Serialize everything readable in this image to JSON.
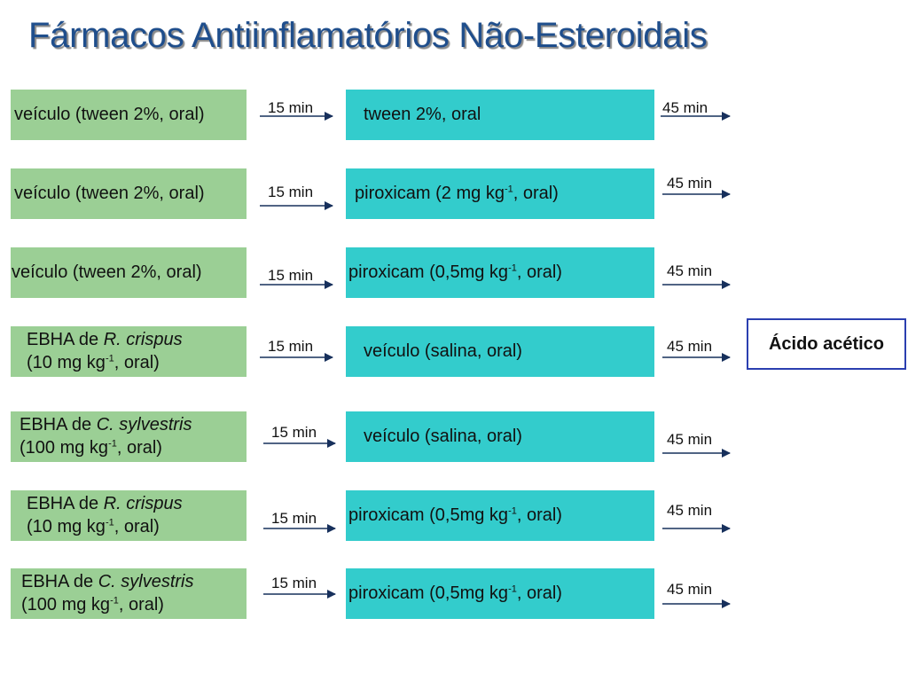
{
  "title": "Fármacos Antiinflamatórios Não-Esteroidais",
  "result": "Ácido acético",
  "rows": [
    {
      "pre": {
        "text": "veículo (tween 2%, oral)"
      },
      "t1": "15 min",
      "treat": {
        "text": "tween 2%, oral"
      },
      "t2": "45 min"
    },
    {
      "pre": {
        "text": "veículo (tween 2%, oral)"
      },
      "t1": "15 min",
      "treat": {
        "before": "piroxicam (2 mg kg",
        "sup": "-1",
        "after": ", oral)"
      },
      "t2": "45 min"
    },
    {
      "pre": {
        "text": "veículo (tween 2%, oral)"
      },
      "t1": "15 min",
      "treat": {
        "before": "piroxicam (0,5mg kg",
        "sup": "-1",
        "after": ", oral)"
      },
      "t2": "45 min"
    },
    {
      "pre": {
        "prefix": "EBHA de ",
        "italic": "R. crispus",
        "line2_before": "(10 mg kg",
        "sup": "-1",
        "line2_after": ", oral)"
      },
      "t1": "15 min",
      "treat": {
        "text": "veículo (salina, oral)"
      },
      "t2": "45 min"
    },
    {
      "pre": {
        "prefix": "EBHA de ",
        "italic": "C. sylvestris",
        "line2_before": "(100 mg kg",
        "sup": "-1",
        "line2_after": ", oral)"
      },
      "t1": "15 min",
      "treat": {
        "text": "veículo (salina, oral)"
      },
      "t2": "45 min"
    },
    {
      "pre": {
        "prefix": "EBHA de ",
        "italic": "R. crispus",
        "line2_before": "(10 mg kg",
        "sup": "-1",
        "line2_after": ", oral)"
      },
      "t1": "15 min",
      "treat": {
        "before": "piroxicam (0,5mg kg",
        "sup": "-1",
        "after": ", oral)"
      },
      "t2": "45 min"
    },
    {
      "pre": {
        "prefix": "EBHA de ",
        "italic": "C. sylvestris",
        "line2_before": "(100 mg kg",
        "sup": "-1",
        "line2_after": ", oral)"
      },
      "t1": "15 min",
      "treat": {
        "before": "piroxicam (0,5mg kg",
        "sup": "-1",
        "after": ", oral)"
      },
      "t2": "45 min"
    }
  ]
}
